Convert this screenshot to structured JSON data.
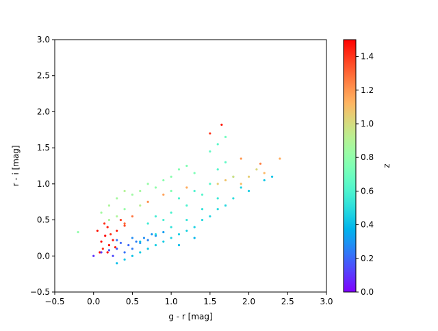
{
  "chart_data": {
    "type": "scatter",
    "xlabel": "g - r [mag]",
    "ylabel": "r - i [mag]",
    "colorbar_label": "z",
    "colormap": "rainbow",
    "xlim": [
      -0.5,
      3.0
    ],
    "ylim": [
      -0.5,
      3.0
    ],
    "clim": [
      0,
      1.5
    ],
    "xticks": [
      {
        "value": -0.5,
        "label": "−0.5"
      },
      {
        "value": 0,
        "label": "0.0"
      },
      {
        "value": 0.5,
        "label": "0.5"
      },
      {
        "value": 1,
        "label": "1.0"
      },
      {
        "value": 1.5,
        "label": "1.5"
      },
      {
        "value": 2,
        "label": "2.0"
      },
      {
        "value": 2.5,
        "label": "2.5"
      },
      {
        "value": 3,
        "label": "3.0"
      }
    ],
    "yticks": [
      {
        "value": -0.5,
        "label": "−0.5"
      },
      {
        "value": 0,
        "label": "0.0"
      },
      {
        "value": 0.5,
        "label": "0.5"
      },
      {
        "value": 1,
        "label": "1.0"
      },
      {
        "value": 1.5,
        "label": "1.5"
      },
      {
        "value": 2,
        "label": "2.0"
      },
      {
        "value": 2.5,
        "label": "2.5"
      },
      {
        "value": 3,
        "label": "3.0"
      }
    ],
    "cticks": [
      {
        "value": 0,
        "label": "0.0"
      },
      {
        "value": 0.2,
        "label": "0.2"
      },
      {
        "value": 0.4,
        "label": "0.4"
      },
      {
        "value": 0.6,
        "label": "0.6"
      },
      {
        "value": 0.8,
        "label": "0.8"
      },
      {
        "value": 1,
        "label": "1.0"
      },
      {
        "value": 1.2,
        "label": "1.2"
      },
      {
        "value": 1.4,
        "label": "1.4"
      }
    ],
    "x": [
      0.05,
      0.1,
      0.12,
      0.15,
      0.18,
      0.2,
      0.22,
      0.25,
      0.08,
      0.3,
      0.28,
      0.14,
      0.35,
      0.4,
      0.18,
      0.0,
      0.1,
      0.2,
      0.3,
      0.35,
      0.4,
      0.45,
      0.5,
      0.55,
      0.6,
      0.65,
      0.7,
      0.75,
      0.8,
      0.9,
      0.3,
      0.25,
      0.5,
      0.3,
      0.4,
      0.5,
      0.6,
      0.7,
      0.8,
      0.9,
      1.0,
      1.1,
      1.2,
      1.3,
      1.4,
      1.5,
      1.6,
      1.7,
      1.8,
      2.0,
      2.2,
      2.3,
      1.0,
      1.2,
      1.4,
      1.6,
      0.8,
      1.1,
      0.6,
      1.3,
      1.9,
      0.9,
      1.0,
      1.2,
      1.4,
      1.5,
      1.6,
      1.7,
      1.3,
      1.1,
      0.8,
      1.5,
      1.6,
      1.8,
      0.7,
      0.1,
      0.2,
      0.3,
      0.4,
      0.5,
      0.6,
      0.7,
      0.8,
      0.9,
      1.0,
      1.1,
      1.2,
      1.3,
      0.4,
      0.3,
      0.6,
      0.2,
      1.7,
      -0.2,
      1.0,
      1.6,
      1.7,
      1.8,
      1.9,
      2.0,
      2.1,
      2.2,
      2.4,
      2.15,
      1.9,
      0.7,
      0.9,
      0.5,
      0.4,
      1.65,
      1.5,
      1.2
    ],
    "y": [
      0.35,
      0.2,
      0.1,
      0.28,
      0.4,
      0.15,
      0.3,
      0.22,
      0.05,
      0.35,
      0.12,
      0.45,
      0.5,
      0.42,
      0.05,
      0.0,
      0.05,
      0.08,
      0.1,
      0.18,
      0.05,
      0.15,
      0.1,
      0.2,
      0.18,
      0.25,
      0.22,
      0.3,
      0.28,
      0.33,
      0.22,
      0.0,
      0.25,
      -0.1,
      -0.05,
      0.0,
      0.05,
      0.1,
      0.15,
      0.2,
      0.25,
      0.3,
      0.35,
      0.4,
      0.5,
      0.55,
      0.65,
      0.7,
      0.8,
      0.9,
      1.05,
      1.1,
      0.4,
      0.5,
      0.65,
      0.8,
      0.3,
      0.15,
      0.2,
      0.25,
      0.95,
      0.5,
      0.6,
      0.7,
      0.85,
      1.0,
      1.2,
      1.3,
      0.9,
      0.8,
      0.55,
      1.45,
      1.55,
      1.1,
      0.45,
      0.6,
      0.7,
      0.8,
      0.65,
      0.85,
      0.9,
      1.0,
      0.95,
      1.05,
      1.1,
      1.2,
      1.25,
      1.15,
      0.9,
      0.55,
      0.7,
      0.5,
      1.65,
      0.33,
      0.9,
      1.0,
      1.05,
      1.1,
      1.0,
      1.1,
      1.2,
      1.15,
      1.35,
      1.28,
      1.35,
      0.75,
      0.85,
      0.55,
      0.45,
      1.82,
      1.7,
      0.95
    ],
    "z": [
      1.45,
      1.48,
      1.42,
      1.5,
      1.44,
      1.47,
      1.4,
      1.46,
      1.49,
      1.43,
      1.45,
      1.41,
      1.38,
      1.36,
      1.5,
      0.1,
      0.12,
      0.15,
      0.18,
      0.2,
      0.22,
      0.2,
      0.24,
      0.25,
      0.27,
      0.28,
      0.26,
      0.3,
      0.29,
      0.32,
      0.22,
      0.14,
      0.28,
      0.4,
      0.42,
      0.42,
      0.44,
      0.43,
      0.45,
      0.44,
      0.46,
      0.45,
      0.47,
      0.46,
      0.48,
      0.47,
      0.49,
      0.48,
      0.5,
      0.45,
      0.43,
      0.42,
      0.52,
      0.53,
      0.52,
      0.55,
      0.5,
      0.4,
      0.41,
      0.38,
      0.47,
      0.58,
      0.6,
      0.6,
      0.62,
      0.63,
      0.62,
      0.65,
      0.6,
      0.6,
      0.57,
      0.66,
      0.64,
      0.62,
      0.56,
      0.85,
      0.88,
      0.86,
      0.82,
      0.84,
      0.86,
      0.82,
      0.8,
      0.78,
      0.78,
      0.76,
      0.75,
      0.74,
      0.9,
      0.88,
      0.92,
      0.88,
      0.7,
      0.8,
      0.76,
      1.05,
      1.08,
      1.0,
      1.1,
      1.05,
      1.02,
      1.12,
      1.15,
      1.25,
      1.2,
      1.22,
      1.18,
      1.28,
      1.3,
      1.45,
      1.4,
      1.15
    ]
  }
}
